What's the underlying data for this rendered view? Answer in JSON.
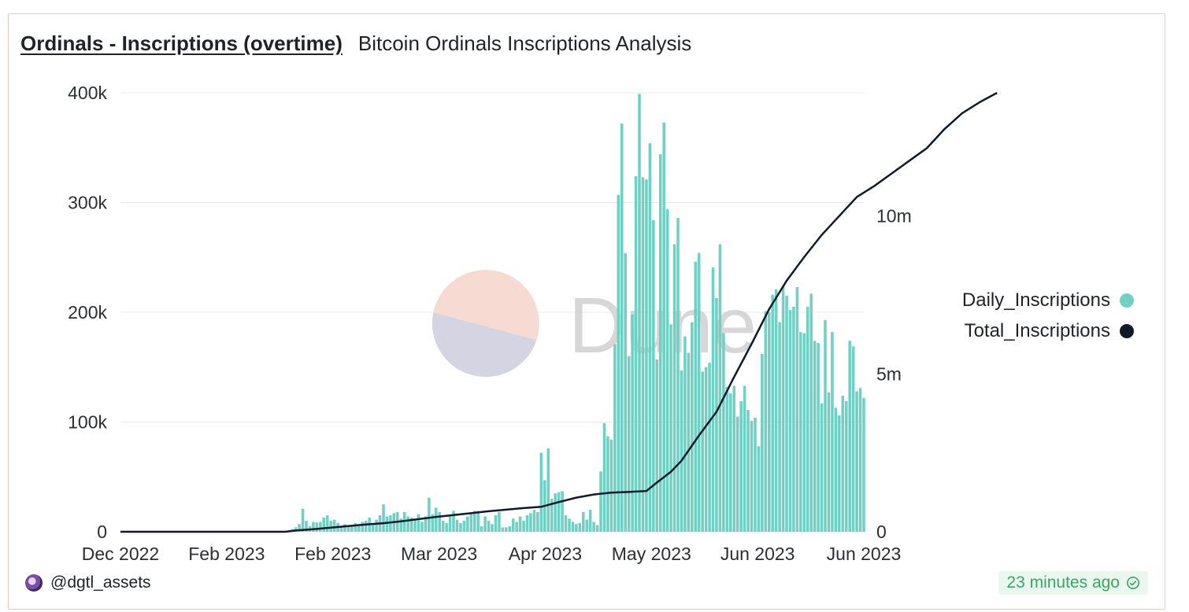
{
  "header": {
    "title": "Ordinals - Inscriptions (overtime)",
    "subtitle": "Bitcoin Ordinals Inscriptions Analysis"
  },
  "footer": {
    "username": "@dgtl_assets",
    "updated": "23 minutes ago"
  },
  "watermark": {
    "text": "Dune"
  },
  "colors": {
    "daily": "#6fd0c4",
    "total": "#0f1b2d",
    "grid": "#e9e9ec",
    "card_border": "#efc9bd"
  },
  "chart_data": {
    "type": "bar",
    "title": "Ordinals - Inscriptions (overtime)",
    "xlabel": "",
    "ylabel": "",
    "x_tick_labels": [
      "Dec 2022",
      "Feb 2023",
      "Feb 2023",
      "Mar 2023",
      "Apr 2023",
      "May 2023",
      "Jun 2023",
      "Jun 2023"
    ],
    "y_left": {
      "ticks": [
        0,
        100000,
        200000,
        300000,
        400000
      ],
      "tick_labels": [
        "0",
        "100k",
        "200k",
        "300k",
        "400k"
      ],
      "ylim": [
        0,
        400000
      ]
    },
    "y_right": {
      "ticks": [
        0,
        5000000,
        10000000
      ],
      "tick_labels": [
        "0",
        "5m",
        "10m"
      ],
      "ylim": [
        0,
        13900000
      ]
    },
    "legend_position": "right",
    "grid": true,
    "series": [
      {
        "name": "Daily_Inscriptions",
        "type": "bar",
        "axis": "left",
        "values": [
          0,
          0,
          0,
          0,
          0,
          0,
          0,
          0,
          0,
          0,
          0,
          0,
          0,
          0,
          0,
          0,
          0,
          0,
          0,
          0,
          0,
          0,
          0,
          0,
          0,
          0,
          0,
          0,
          0,
          0,
          0,
          0,
          0,
          0,
          0,
          0,
          0,
          0,
          0,
          0,
          0,
          0,
          0,
          0,
          0,
          0,
          0,
          500,
          1200,
          2500,
          4000,
          7000,
          21000,
          10000,
          5000,
          9000,
          8500,
          9000,
          13000,
          15000,
          10000,
          11000,
          8000,
          5000,
          7000,
          6000,
          5000,
          8000,
          6000,
          9000,
          10000,
          13000,
          8000,
          11000,
          15000,
          25000,
          14000,
          15000,
          17000,
          18000,
          12000,
          18000,
          14000,
          13000,
          12000,
          16000,
          9000,
          14000,
          31000,
          16000,
          22000,
          18000,
          10000,
          8000,
          14000,
          19000,
          11000,
          8000,
          10000,
          14000,
          16000,
          19000,
          19000,
          5000,
          14000,
          10000,
          7000,
          15000,
          18000,
          4000,
          4000,
          5000,
          12000,
          9000,
          14000,
          10000,
          15000,
          17000,
          20000,
          18000,
          72000,
          47000,
          76000,
          30000,
          35000,
          36000,
          37000,
          15000,
          12000,
          9000,
          7000,
          8000,
          18000,
          11000,
          20000,
          9000,
          6000,
          55000,
          99000,
          87000,
          84000,
          171000,
          307000,
          372000,
          254000,
          160000,
          198000,
          324000,
          399000,
          323000,
          321000,
          354000,
          284000,
          157000,
          344000,
          373000,
          294000,
          189000,
          262000,
          286000,
          147000,
          178000,
          163000,
          191000,
          246000,
          254000,
          146000,
          150000,
          154000,
          241000,
          213000,
          262000,
          181000,
          132000,
          126000,
          133000,
          105000,
          119000,
          133000,
          111000,
          101000,
          104000,
          78000,
          162000,
          201000,
          200000,
          216000,
          221000,
          191000,
          224000,
          215000,
          202000,
          205000,
          223000,
          182000,
          181000,
          205000,
          217000,
          174000,
          172000,
          117000,
          193000,
          127000,
          182000,
          113000,
          106000,
          124000,
          119000,
          174000,
          169000,
          128000,
          131000,
          122000
        ]
      },
      {
        "name": "Total_Inscriptions",
        "type": "line",
        "axis": "right",
        "points": [
          [
            0,
            0
          ],
          [
            47,
            0
          ],
          [
            50,
            40000
          ],
          [
            55,
            80000
          ],
          [
            60,
            130000
          ],
          [
            65,
            180000
          ],
          [
            70,
            230000
          ],
          [
            75,
            270000
          ],
          [
            80,
            330000
          ],
          [
            85,
            400000
          ],
          [
            90,
            470000
          ],
          [
            95,
            530000
          ],
          [
            100,
            590000
          ],
          [
            105,
            650000
          ],
          [
            110,
            700000
          ],
          [
            115,
            750000
          ],
          [
            120,
            790000
          ],
          [
            125,
            940000
          ],
          [
            130,
            1080000
          ],
          [
            135,
            1180000
          ],
          [
            140,
            1240000
          ],
          [
            145,
            1260000
          ],
          [
            150,
            1290000
          ],
          [
            153,
            1560000
          ],
          [
            157,
            1900000
          ],
          [
            160,
            2250000
          ],
          [
            165,
            3050000
          ],
          [
            170,
            3800000
          ],
          [
            175,
            4900000
          ],
          [
            180,
            5950000
          ],
          [
            185,
            7050000
          ],
          [
            190,
            7950000
          ],
          [
            195,
            8700000
          ],
          [
            200,
            9400000
          ],
          [
            205,
            10000000
          ],
          [
            210,
            10600000
          ],
          [
            215,
            10950000
          ],
          [
            220,
            11350000
          ],
          [
            225,
            11750000
          ],
          [
            230,
            12150000
          ],
          [
            235,
            12750000
          ],
          [
            240,
            13250000
          ],
          [
            245,
            13600000
          ],
          [
            250,
            13900000
          ]
        ]
      }
    ]
  }
}
